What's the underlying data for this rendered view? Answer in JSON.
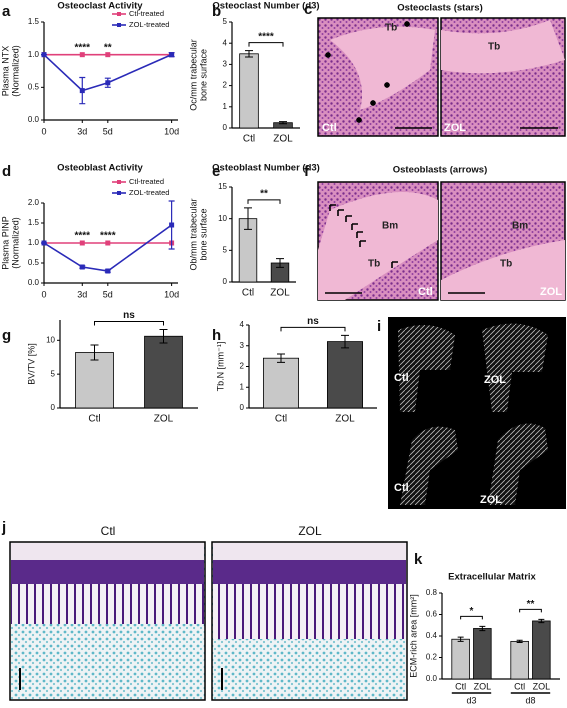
{
  "chart_data": [
    {
      "type": "line",
      "panel": "a",
      "title": "Osteoclast Activity",
      "ylabel": [
        "Plasma NTX",
        "(Normalized)"
      ],
      "x": [
        0,
        3,
        5,
        10
      ],
      "xlim": [
        0,
        10.5
      ],
      "xticks": [
        0,
        {
          "value": 3,
          "label": "3d"
        },
        {
          "value": 5,
          "label": "5d"
        },
        {
          "value": 10,
          "label": "10d"
        }
      ],
      "ylim": [
        0,
        1.5
      ],
      "yticks": [
        {
          "value": 0,
          "label": "0.0"
        },
        0.5,
        {
          "value": 1,
          "label": "1.0"
        },
        1.5
      ],
      "series": [
        {
          "name": "Ctl-treated",
          "color": "#e0407a",
          "values": [
            1,
            1,
            1,
            1
          ]
        },
        {
          "name": "ZOL-treated",
          "color": "#2a2ab8",
          "values": [
            1,
            0.45,
            0.57,
            1
          ],
          "errors": [
            0,
            0.2,
            0.07,
            0.03
          ]
        }
      ],
      "annotations": [
        null,
        "****",
        "**",
        null
      ]
    },
    {
      "type": "bar",
      "panel": "b",
      "title": "Osteoclast Number (d3)",
      "ylabel": [
        "Oc/mm trabecular",
        "bone surface"
      ],
      "categories": [
        "Ctl",
        "ZOL"
      ],
      "values": [
        3.5,
        0.25
      ],
      "errors": [
        0.15,
        0.05
      ],
      "colors": [
        "#c8c8c8",
        "#4a4a4a"
      ],
      "ylim": [
        0,
        5
      ],
      "yticks": [
        0,
        1,
        2,
        3,
        4,
        5
      ],
      "significance": "****"
    },
    {
      "type": "line",
      "panel": "d",
      "title": "Osteoblast Activity",
      "ylabel": [
        "Plasma PINP",
        "(Normalized)"
      ],
      "x": [
        0,
        3,
        5,
        10
      ],
      "xlim": [
        0,
        10.5
      ],
      "xticks": [
        0,
        {
          "value": 3,
          "label": "3d"
        },
        {
          "value": 5,
          "label": "5d"
        },
        {
          "value": 10,
          "label": "10d"
        }
      ],
      "ylim": [
        0,
        2
      ],
      "yticks": [
        {
          "value": 0,
          "label": "0.0"
        },
        0.5,
        {
          "value": 1,
          "label": "1.0"
        },
        1.5,
        {
          "value": 2,
          "label": "2.0"
        }
      ],
      "series": [
        {
          "name": "Ctl-treated",
          "color": "#e0407a",
          "values": [
            1,
            1,
            1,
            1
          ]
        },
        {
          "name": "ZOL-treated",
          "color": "#2a2ab8",
          "values": [
            1,
            0.4,
            0.3,
            1.45
          ],
          "errors": [
            0,
            0.03,
            0.03,
            0.6
          ]
        }
      ],
      "annotations": [
        null,
        "****",
        "****",
        null
      ]
    },
    {
      "type": "bar",
      "panel": "e",
      "title": "Osteoblast Number (d3)",
      "ylabel": [
        "Ob/mm trabecular",
        "bone surface"
      ],
      "categories": [
        "Ctl",
        "ZOL"
      ],
      "values": [
        10,
        3
      ],
      "errors": [
        1.7,
        0.7
      ],
      "colors": [
        "#c8c8c8",
        "#4a4a4a"
      ],
      "ylim": [
        0,
        15
      ],
      "yticks": [
        0,
        5,
        10,
        15
      ],
      "significance": "**"
    },
    {
      "type": "bar",
      "panel": "g",
      "ylabel": [
        "BV/TV [%]"
      ],
      "categories": [
        "Ctl",
        "ZOL"
      ],
      "values": [
        8.2,
        10.6
      ],
      "errors": [
        1.1,
        1
      ],
      "colors": [
        "#c8c8c8",
        "#4a4a4a"
      ],
      "ylim": [
        0,
        13
      ],
      "yticks": [
        0,
        5,
        10
      ],
      "significance": "ns"
    },
    {
      "type": "bar",
      "panel": "h",
      "ylabel": [
        "Tb.N [mm⁻¹]"
      ],
      "categories": [
        "Ctl",
        "ZOL"
      ],
      "values": [
        2.4,
        3.2
      ],
      "errors": [
        0.2,
        0.3
      ],
      "colors": [
        "#c8c8c8",
        "#4a4a4a"
      ],
      "ylim": [
        0,
        4
      ],
      "yticks": [
        0,
        1,
        2,
        3,
        4
      ],
      "significance": "ns"
    },
    {
      "type": "grouped-bar",
      "panel": "k",
      "title": "Extracellular Matrix",
      "ylabel": [
        "ECM-rich area [mm²]"
      ],
      "groups": [
        "d3",
        "d8"
      ],
      "series": [
        {
          "name": "Ctl",
          "color": "#c8c8c8",
          "values": [
            0.37,
            0.35
          ],
          "errors": [
            0.02,
            0.01
          ]
        },
        {
          "name": "ZOL",
          "color": "#4a4a4a",
          "values": [
            0.47,
            0.54
          ],
          "errors": [
            0.02,
            0.015
          ]
        }
      ],
      "ylim": [
        0,
        0.8
      ],
      "yticks": [
        {
          "value": 0,
          "label": "0.0"
        },
        0.2,
        0.4,
        0.6,
        0.8
      ],
      "significance": [
        "*",
        "**"
      ]
    }
  ],
  "image_panels": {
    "c": {
      "letter": "c",
      "title": "Osteoclasts (stars)",
      "left": [
        "Tb",
        "Ctl"
      ],
      "right": [
        "Tb",
        "ZOL"
      ]
    },
    "f": {
      "letter": "f",
      "title": "Osteoblasts (arrows)",
      "left": [
        "Bm",
        "Tb",
        "Ctl"
      ],
      "right": [
        "Bm",
        "Tb",
        "ZOL"
      ]
    },
    "i": {
      "letter": "i",
      "labels": [
        "Ctl",
        "ZOL",
        "Ctl",
        "ZOL"
      ]
    },
    "j": {
      "letter": "j",
      "labels": [
        "Ctl",
        "ZOL"
      ]
    }
  }
}
